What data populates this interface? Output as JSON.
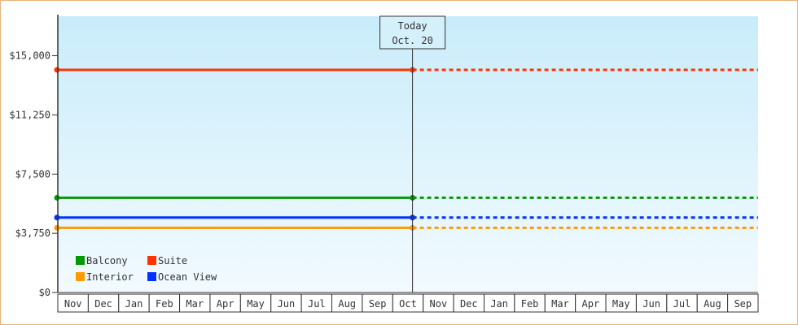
{
  "chart_data": {
    "type": "line",
    "title": "",
    "xlabel": "",
    "ylabel": "",
    "ylim": [
      0,
      17500
    ],
    "y_ticks": [
      0,
      3750,
      7500,
      11250,
      15000
    ],
    "y_tick_labels": [
      "$0",
      "$3,750",
      "$7,500",
      "$11,250",
      "$15,000"
    ],
    "x_tick_labels": [
      "Nov",
      "Dec",
      "Jan",
      "Feb",
      "Mar",
      "Apr",
      "May",
      "Jun",
      "Jul",
      "Aug",
      "Sep",
      "Oct",
      "Nov",
      "Dec",
      "Jan",
      "Feb",
      "Mar",
      "Apr",
      "May",
      "Jun",
      "Jul",
      "Aug",
      "Sep"
    ],
    "today_marker": {
      "label_line1": "Today",
      "label_line2": "Oct. 20",
      "month_index": 11.65
    },
    "legend": {
      "placement": "bottom-left"
    },
    "grid": false,
    "series": [
      {
        "name": "Suite",
        "color": "#ff3300",
        "value_past": 14100,
        "value_projected": 14100
      },
      {
        "name": "Balcony",
        "color": "#009900",
        "value_past": 6000,
        "value_projected": 6000
      },
      {
        "name": "Ocean View",
        "color": "#0033ff",
        "value_past": 4750,
        "value_projected": 4750
      },
      {
        "name": "Interior",
        "color": "#ff9900",
        "value_past": 4100,
        "value_projected": 4100
      }
    ],
    "legend_order": [
      "Balcony",
      "Suite",
      "Interior",
      "Ocean View"
    ]
  }
}
